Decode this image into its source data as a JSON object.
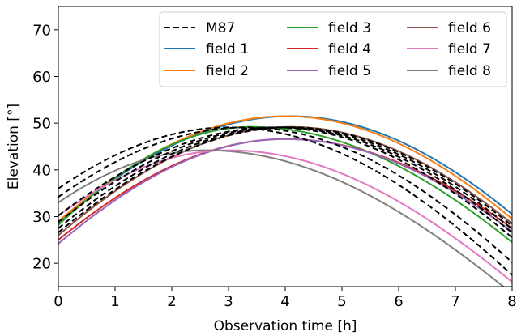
{
  "chart_data": {
    "type": "line",
    "title": "",
    "xlabel": "Observation time [h]",
    "ylabel": "Elevation [°]",
    "xlim": [
      0,
      8
    ],
    "ylim": [
      15,
      75
    ],
    "xticks": [
      "0",
      "1",
      "2",
      "3",
      "4",
      "5",
      "6",
      "7",
      "8"
    ],
    "yticks": [
      "20",
      "30",
      "40",
      "50",
      "60",
      "70"
    ],
    "grid": false,
    "legend_position": "top-right",
    "legend": [
      {
        "name": "M87",
        "color": "#000000",
        "dash": true
      },
      {
        "name": "field 1",
        "color": "#1f77b4"
      },
      {
        "name": "field 2",
        "color": "#ff7f0e"
      },
      {
        "name": "field 3",
        "color": "#2ca02c"
      },
      {
        "name": "field 4",
        "color": "#d62728"
      },
      {
        "name": "field 5",
        "color": "#9467bd"
      },
      {
        "name": "field 6",
        "color": "#8c564b"
      },
      {
        "name": "field 7",
        "color": "#e377c2"
      },
      {
        "name": "field 8",
        "color": "#7f7f7f"
      }
    ],
    "series": [
      {
        "name": "field 1",
        "color": "#1f77b4",
        "peak_x": 4.1,
        "peak_y": 51.5,
        "x": [
          0,
          8
        ],
        "y": [
          28.8,
          30.5
        ]
      },
      {
        "name": "field 2",
        "color": "#ff7f0e",
        "peak_x": 4.0,
        "peak_y": 51.5,
        "x": [
          0,
          8
        ],
        "y": [
          29.0,
          29.5
        ]
      },
      {
        "name": "field 3",
        "color": "#2ca02c",
        "peak_x": 3.4,
        "peak_y": 49.2,
        "x": [
          0,
          8
        ],
        "y": [
          28.2,
          24.5
        ]
      },
      {
        "name": "field 4",
        "color": "#d62728",
        "peak_x": 4.0,
        "peak_y": 46.6,
        "x": [
          0,
          8
        ],
        "y": [
          25.0,
          27.5
        ]
      },
      {
        "name": "field 5",
        "color": "#9467bd",
        "peak_x": 4.0,
        "peak_y": 46.6,
        "x": [
          0,
          8
        ],
        "y": [
          24.2,
          26.8
        ]
      },
      {
        "name": "field 6",
        "color": "#8c564b",
        "peak_x": 4.1,
        "peak_y": 49.2,
        "x": [
          0,
          8
        ],
        "y": [
          26.0,
          28.5
        ]
      },
      {
        "name": "field 7",
        "color": "#e377c2",
        "peak_x": 3.0,
        "peak_y": 44.2,
        "x": [
          0,
          8
        ],
        "y": [
          30.2,
          16.0
        ]
      },
      {
        "name": "field 8",
        "color": "#7f7f7f",
        "peak_x": 2.6,
        "peak_y": 44.2,
        "x": [
          0,
          8
        ],
        "y": [
          33.0,
          13.5
        ]
      },
      {
        "name": "M87",
        "color": "#000000",
        "dash": true,
        "peak_x": 3.0,
        "peak_y": 49.1,
        "x": [
          0,
          8
        ],
        "y": [
          36.0,
          17.5
        ]
      },
      {
        "name": "M87",
        "color": "#000000",
        "dash": true,
        "peak_x": 3.3,
        "peak_y": 49.1,
        "x": [
          0,
          8
        ],
        "y": [
          34.2,
          20.2
        ]
      },
      {
        "name": "M87",
        "color": "#000000",
        "dash": true,
        "peak_x": 3.8,
        "peak_y": 49.1,
        "x": [
          0,
          8
        ],
        "y": [
          30.2,
          25.5
        ]
      },
      {
        "name": "M87",
        "color": "#000000",
        "dash": true,
        "peak_x": 3.9,
        "peak_y": 49.1,
        "x": [
          0,
          8
        ],
        "y": [
          28.8,
          26.5
        ]
      },
      {
        "name": "M87",
        "color": "#000000",
        "dash": true,
        "peak_x": 4.0,
        "peak_y": 49.1,
        "x": [
          0,
          8
        ],
        "y": [
          27.5,
          27.3
        ]
      },
      {
        "name": "M87",
        "color": "#000000",
        "dash": true,
        "peak_x": 4.1,
        "peak_y": 49.1,
        "x": [
          0,
          8
        ],
        "y": [
          26.6,
          28.0
        ]
      }
    ]
  }
}
